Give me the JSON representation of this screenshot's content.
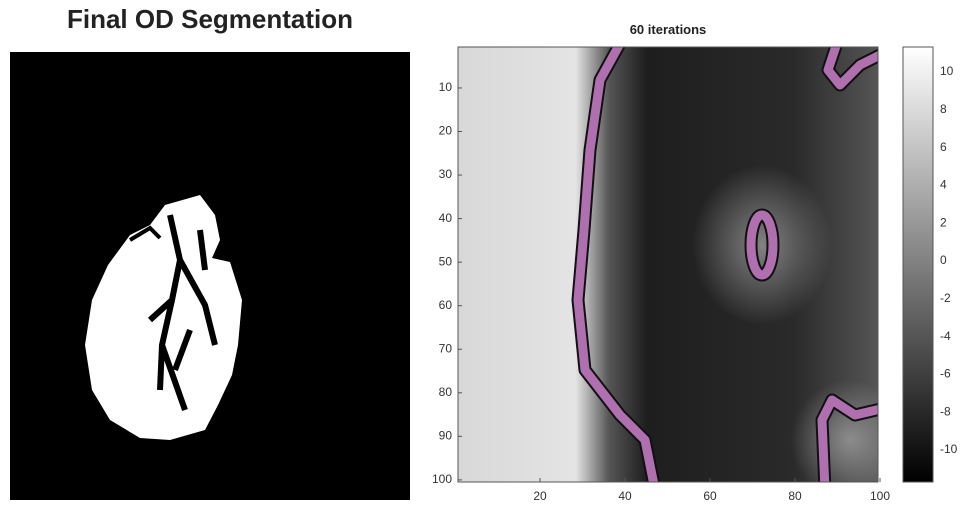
{
  "left": {
    "title": "Final OD Segmentation"
  },
  "right": {
    "title": "60 iterations",
    "xticks": [
      20,
      40,
      60,
      80,
      100
    ],
    "yticks": [
      10,
      20,
      30,
      40,
      50,
      60,
      70,
      80,
      90,
      100
    ],
    "colorbar_ticks": [
      10,
      8,
      6,
      4,
      2,
      0,
      -2,
      -4,
      -6,
      -8,
      -10
    ]
  }
}
